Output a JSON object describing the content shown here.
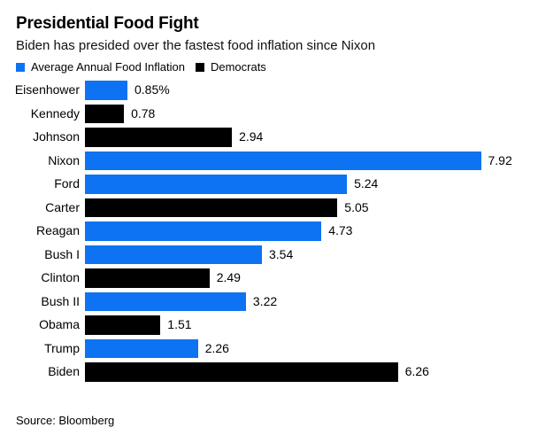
{
  "header": {
    "title": "Presidential Food Fight",
    "subtitle": "Biden has presided over the fastest food inflation since Nixon"
  },
  "legend": {
    "items": [
      {
        "label": "Average Annual Food Inflation",
        "color": "#0d73f2"
      },
      {
        "label": "Democrats",
        "color": "#000000"
      }
    ]
  },
  "colors": {
    "republican_blue": "#0d73f2",
    "democrat_black": "#000000",
    "background": "#ffffff",
    "text": "#000000"
  },
  "chart_data": {
    "type": "bar",
    "orientation": "horizontal",
    "title": "Presidential Food Fight",
    "subtitle": "Biden has presided over the fastest food inflation since Nixon",
    "xlabel": "",
    "ylabel": "",
    "xlim": [
      0,
      8.5
    ],
    "grid": false,
    "legend_position": "top",
    "unit": "percent",
    "categories": [
      "Eisenhower",
      "Kennedy",
      "Johnson",
      "Nixon",
      "Ford",
      "Carter",
      "Reagan",
      "Bush I",
      "Clinton",
      "Bush II",
      "Obama",
      "Trump",
      "Biden"
    ],
    "values": [
      0.85,
      0.78,
      2.94,
      7.92,
      5.24,
      5.05,
      4.73,
      3.54,
      2.49,
      3.22,
      1.51,
      2.26,
      6.26
    ],
    "value_labels": [
      "0.85%",
      "0.78",
      "2.94",
      "7.92",
      "5.24",
      "5.05",
      "4.73",
      "3.54",
      "2.49",
      "3.22",
      "1.51",
      "2.26",
      "6.26"
    ],
    "parties": [
      "republican",
      "democrat",
      "democrat",
      "republican",
      "republican",
      "democrat",
      "republican",
      "republican",
      "democrat",
      "republican",
      "democrat",
      "republican",
      "democrat"
    ]
  },
  "source": "Source: Bloomberg"
}
